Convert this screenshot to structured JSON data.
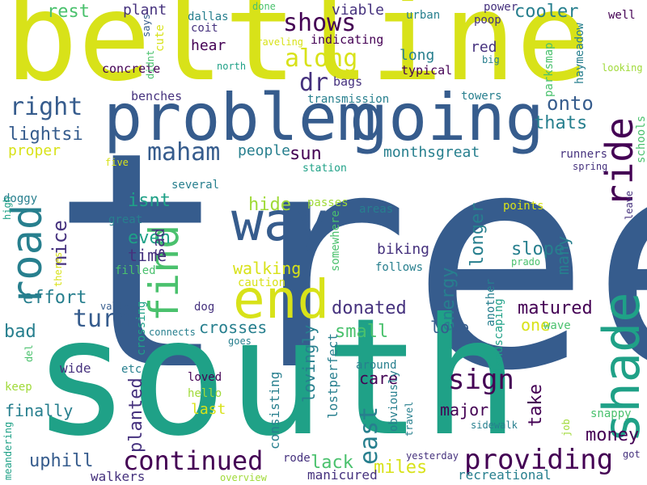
{
  "colors": {
    "background": "#ffffff",
    "palette": [
      "#440154",
      "#46327e",
      "#365c8d",
      "#277f8e",
      "#1fa187",
      "#4ac16d",
      "#a0da39",
      "#d8e219"
    ]
  },
  "words": [
    {
      "text": "tree",
      "color": "#365c8d"
    },
    {
      "text": "south",
      "color": "#1fa187"
    },
    {
      "text": "beltline",
      "color": "#d8e219"
    },
    {
      "text": "problem",
      "color": "#365c8d"
    },
    {
      "text": "going",
      "color": "#365c8d"
    },
    {
      "text": "end",
      "color": "#d8e219"
    },
    {
      "text": "way",
      "color": "#365c8d"
    },
    {
      "text": "shade",
      "color": "#1fa187"
    },
    {
      "text": "ride",
      "color": "#440154"
    },
    {
      "text": "road",
      "color": "#277f8e"
    },
    {
      "text": "find",
      "color": "#4ac16d"
    },
    {
      "text": "continued",
      "color": "#440154"
    },
    {
      "text": "providing",
      "color": "#440154"
    },
    {
      "text": "sign",
      "color": "#440154"
    },
    {
      "text": "east",
      "color": "#277f8e"
    },
    {
      "text": "shows",
      "color": "#440154"
    },
    {
      "text": "along",
      "color": "#d8e219"
    },
    {
      "text": "right",
      "color": "#365c8d"
    },
    {
      "text": "maham",
      "color": "#365c8d"
    },
    {
      "text": "turn",
      "color": "#365c8d"
    },
    {
      "text": "onto",
      "color": "#365c8d"
    },
    {
      "text": "dr",
      "color": "#46327e"
    },
    {
      "text": "rest",
      "color": "#4ac16d"
    },
    {
      "text": "cooler",
      "color": "#277f8e"
    },
    {
      "text": "thats",
      "color": "#277f8e"
    },
    {
      "text": "sun",
      "color": "#440154"
    },
    {
      "text": "lightsi",
      "color": "#365c8d"
    },
    {
      "text": "slope",
      "color": "#277f8e"
    },
    {
      "text": "nice",
      "color": "#46327e"
    },
    {
      "text": "uphill",
      "color": "#365c8d"
    },
    {
      "text": "lack",
      "color": "#4ac16d"
    },
    {
      "text": "miles",
      "color": "#d8e219"
    },
    {
      "text": "take",
      "color": "#440154"
    },
    {
      "text": "money",
      "color": "#440154"
    },
    {
      "text": "hide",
      "color": "#a0da39"
    },
    {
      "text": "energy",
      "color": "#277f8e"
    },
    {
      "text": "longer",
      "color": "#277f8e"
    },
    {
      "text": "matured",
      "color": "#440154"
    },
    {
      "text": "donated",
      "color": "#46327e"
    },
    {
      "text": "bad",
      "color": "#277f8e"
    },
    {
      "text": "small",
      "color": "#4ac16d"
    },
    {
      "text": "effort",
      "color": "#277f8e"
    },
    {
      "text": "isnt",
      "color": "#1fa187"
    },
    {
      "text": "even",
      "color": "#1fa187"
    },
    {
      "text": "time",
      "color": "#46327e"
    },
    {
      "text": "walking",
      "color": "#d8e219"
    },
    {
      "text": "crosses",
      "color": "#277f8e"
    },
    {
      "text": "planted",
      "color": "#46327e"
    },
    {
      "text": "lovingly",
      "color": "#277f8e"
    },
    {
      "text": "finally",
      "color": "#277f8e"
    },
    {
      "text": "major",
      "color": "#440154"
    },
    {
      "text": "care",
      "color": "#440154"
    },
    {
      "text": "love",
      "color": "#365c8d"
    },
    {
      "text": "one",
      "color": "#d8e219"
    },
    {
      "text": "many",
      "color": "#277f8e"
    },
    {
      "text": "sad",
      "color": "#46327e"
    },
    {
      "text": "people",
      "color": "#277f8e"
    },
    {
      "text": "monthsgreat",
      "color": "#277f8e"
    },
    {
      "text": "proper",
      "color": "#d8e219"
    },
    {
      "text": "biking",
      "color": "#46327e"
    },
    {
      "text": "long",
      "color": "#277f8e"
    },
    {
      "text": "red",
      "color": "#46327e"
    },
    {
      "text": "viable",
      "color": "#46327e"
    },
    {
      "text": "plant",
      "color": "#46327e"
    },
    {
      "text": "hear",
      "color": "#440154"
    },
    {
      "text": "last",
      "color": "#d8e219"
    },
    {
      "text": "wide",
      "color": "#46327e"
    },
    {
      "text": "walkers",
      "color": "#46327e"
    },
    {
      "text": "manicured",
      "color": "#46327e"
    },
    {
      "text": "recreational",
      "color": "#277f8e"
    },
    {
      "text": "consisting",
      "color": "#277f8e"
    },
    {
      "text": "lostperfect",
      "color": "#277f8e"
    },
    {
      "text": "rode",
      "color": "#46327e"
    },
    {
      "text": "concrete",
      "color": "#440154"
    },
    {
      "text": "benches",
      "color": "#46327e"
    },
    {
      "text": "indicating",
      "color": "#440154"
    },
    {
      "text": "typical",
      "color": "#440154"
    },
    {
      "text": "bags",
      "color": "#46327e"
    },
    {
      "text": "transmission",
      "color": "#277f8e"
    },
    {
      "text": "towers",
      "color": "#277f8e"
    },
    {
      "text": "dallas",
      "color": "#277f8e"
    },
    {
      "text": "coit",
      "color": "#46327e"
    },
    {
      "text": "urban",
      "color": "#277f8e"
    },
    {
      "text": "poop",
      "color": "#46327e"
    },
    {
      "text": "power",
      "color": "#46327e"
    },
    {
      "text": "well",
      "color": "#440154"
    },
    {
      "text": "haymeadow",
      "color": "#277f8e"
    },
    {
      "text": "parksmap",
      "color": "#4ac16d"
    },
    {
      "text": "runners",
      "color": "#46327e"
    },
    {
      "text": "schools",
      "color": "#4ac16d"
    },
    {
      "text": "spring",
      "color": "#46327e"
    },
    {
      "text": "leave",
      "color": "#46327e"
    },
    {
      "text": "points",
      "color": "#d8e219"
    },
    {
      "text": "areas",
      "color": "#277f8e"
    },
    {
      "text": "prado",
      "color": "#4ac16d"
    },
    {
      "text": "follows",
      "color": "#277f8e"
    },
    {
      "text": "another",
      "color": "#277f8e"
    },
    {
      "text": "landscaping",
      "color": "#1fa187"
    },
    {
      "text": "wave",
      "color": "#4ac16d"
    },
    {
      "text": "snappy",
      "color": "#4ac16d"
    },
    {
      "text": "job",
      "color": "#a0da39"
    },
    {
      "text": "sidewalk",
      "color": "#277f8e"
    },
    {
      "text": "travel",
      "color": "#277f8e"
    },
    {
      "text": "obviously",
      "color": "#277f8e"
    },
    {
      "text": "around",
      "color": "#277f8e"
    },
    {
      "text": "yesterday",
      "color": "#46327e"
    },
    {
      "text": "got",
      "color": "#46327e"
    },
    {
      "text": "overview",
      "color": "#a0da39"
    },
    {
      "text": "station",
      "color": "#1fa187"
    },
    {
      "text": "several",
      "color": "#277f8e"
    },
    {
      "text": "passes",
      "color": "#a0da39"
    },
    {
      "text": "somewhere",
      "color": "#4ac16d"
    },
    {
      "text": "great",
      "color": "#277f8e"
    },
    {
      "text": "filled",
      "color": "#4ac16d"
    },
    {
      "text": "caution",
      "color": "#d8e219"
    },
    {
      "text": "dog",
      "color": "#46327e"
    },
    {
      "text": "connects",
      "color": "#277f8e"
    },
    {
      "text": "goes",
      "color": "#277f8e"
    },
    {
      "text": "crossing",
      "color": "#1fa187"
    },
    {
      "text": "etc",
      "color": "#277f8e"
    },
    {
      "text": "loved",
      "color": "#440154"
    },
    {
      "text": "hello",
      "color": "#a0da39"
    },
    {
      "text": "valley",
      "color": "#365c8d"
    },
    {
      "text": "doggy",
      "color": "#277f8e"
    },
    {
      "text": "five",
      "color": "#d8e219"
    },
    {
      "text": "high",
      "color": "#1fa187"
    },
    {
      "text": "theres",
      "color": "#d8e219"
    },
    {
      "text": "keep",
      "color": "#a0da39"
    },
    {
      "text": "del",
      "color": "#4ac16d"
    },
    {
      "text": "meandering",
      "color": "#1fa187"
    },
    {
      "text": "says",
      "color": "#365c8d"
    },
    {
      "text": "didnt",
      "color": "#4ac16d"
    },
    {
      "text": "cute",
      "color": "#d8e219"
    },
    {
      "text": "north",
      "color": "#1fa187"
    },
    {
      "text": "traveling",
      "color": "#d8e219"
    },
    {
      "text": "done",
      "color": "#4ac16d"
    },
    {
      "text": "big",
      "color": "#277f8e"
    },
    {
      "text": "looking",
      "color": "#a0da39"
    }
  ]
}
